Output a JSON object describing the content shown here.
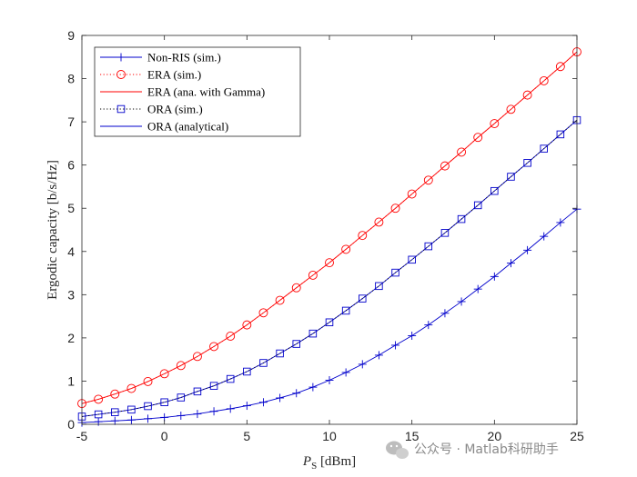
{
  "chart_data": {
    "type": "line",
    "xlabel_main": "P",
    "xlabel_sub": "S",
    "xlabel_unit": "[dBm]",
    "ylabel": "Ergodic capacity [b/s/Hz]",
    "xlim": [
      -5,
      25
    ],
    "ylim": [
      0,
      9
    ],
    "xticks": [
      -5,
      0,
      5,
      10,
      15,
      20,
      25
    ],
    "yticks": [
      0,
      1,
      2,
      3,
      4,
      5,
      6,
      7,
      8,
      9
    ],
    "grid": false,
    "legend_position": "top-left",
    "x": [
      -5,
      -4,
      -3,
      -2,
      -1,
      0,
      1,
      2,
      3,
      4,
      5,
      6,
      7,
      8,
      9,
      10,
      11,
      12,
      13,
      14,
      15,
      16,
      17,
      18,
      19,
      20,
      21,
      22,
      23,
      24,
      25
    ],
    "series": [
      {
        "name": "Non-RIS (sim.)",
        "color": "#0000cc",
        "line": "solid",
        "marker": "plus",
        "values": [
          0.04,
          0.06,
          0.08,
          0.1,
          0.13,
          0.16,
          0.2,
          0.24,
          0.3,
          0.36,
          0.43,
          0.51,
          0.61,
          0.72,
          0.86,
          1.02,
          1.2,
          1.39,
          1.6,
          1.83,
          2.05,
          2.3,
          2.57,
          2.84,
          3.13,
          3.42,
          3.73,
          4.03,
          4.35,
          4.67,
          4.98
        ]
      },
      {
        "name": "ERA (sim.)",
        "color": "#ff0000",
        "line": "dotted",
        "marker": "circle",
        "values": [
          0.48,
          0.58,
          0.7,
          0.83,
          0.99,
          1.17,
          1.36,
          1.57,
          1.8,
          2.04,
          2.3,
          2.58,
          2.87,
          3.16,
          3.45,
          3.74,
          4.05,
          4.37,
          4.68,
          5.0,
          5.33,
          5.65,
          5.98,
          6.3,
          6.64,
          6.96,
          7.29,
          7.62,
          7.95,
          8.28,
          8.62
        ]
      },
      {
        "name": "ERA (ana. with Gamma)",
        "color": "#ff0000",
        "line": "solid",
        "marker": "none",
        "values": [
          0.48,
          0.58,
          0.7,
          0.83,
          0.99,
          1.17,
          1.36,
          1.57,
          1.8,
          2.04,
          2.3,
          2.58,
          2.87,
          3.16,
          3.45,
          3.74,
          4.05,
          4.37,
          4.68,
          5.0,
          5.33,
          5.65,
          5.98,
          6.3,
          6.64,
          6.96,
          7.29,
          7.62,
          7.95,
          8.28,
          8.62
        ]
      },
      {
        "name": "ORA (sim.)",
        "color": "#000000",
        "line": "dotted",
        "marker": "square",
        "values": [
          0.18,
          0.23,
          0.28,
          0.34,
          0.42,
          0.51,
          0.62,
          0.76,
          0.89,
          1.05,
          1.22,
          1.42,
          1.64,
          1.86,
          2.1,
          2.36,
          2.63,
          2.91,
          3.2,
          3.51,
          3.81,
          4.12,
          4.43,
          4.75,
          5.07,
          5.4,
          5.73,
          6.05,
          6.38,
          6.71,
          7.04
        ]
      },
      {
        "name": "ORA (analytical)",
        "color": "#0000cc",
        "line": "solid",
        "marker": "none",
        "values": [
          0.18,
          0.23,
          0.28,
          0.34,
          0.42,
          0.51,
          0.62,
          0.76,
          0.89,
          1.05,
          1.22,
          1.42,
          1.64,
          1.86,
          2.1,
          2.36,
          2.63,
          2.91,
          3.2,
          3.51,
          3.81,
          4.12,
          4.43,
          4.75,
          5.07,
          5.4,
          5.73,
          6.05,
          6.38,
          6.71,
          7.04
        ]
      }
    ],
    "marker_colors": {
      "circle": "#ff0000",
      "square": "#0000cc",
      "plus": "#0000cc"
    }
  },
  "watermark": {
    "text": "公众号 · Matlab科研助手",
    "icon": "wechat-icon"
  }
}
